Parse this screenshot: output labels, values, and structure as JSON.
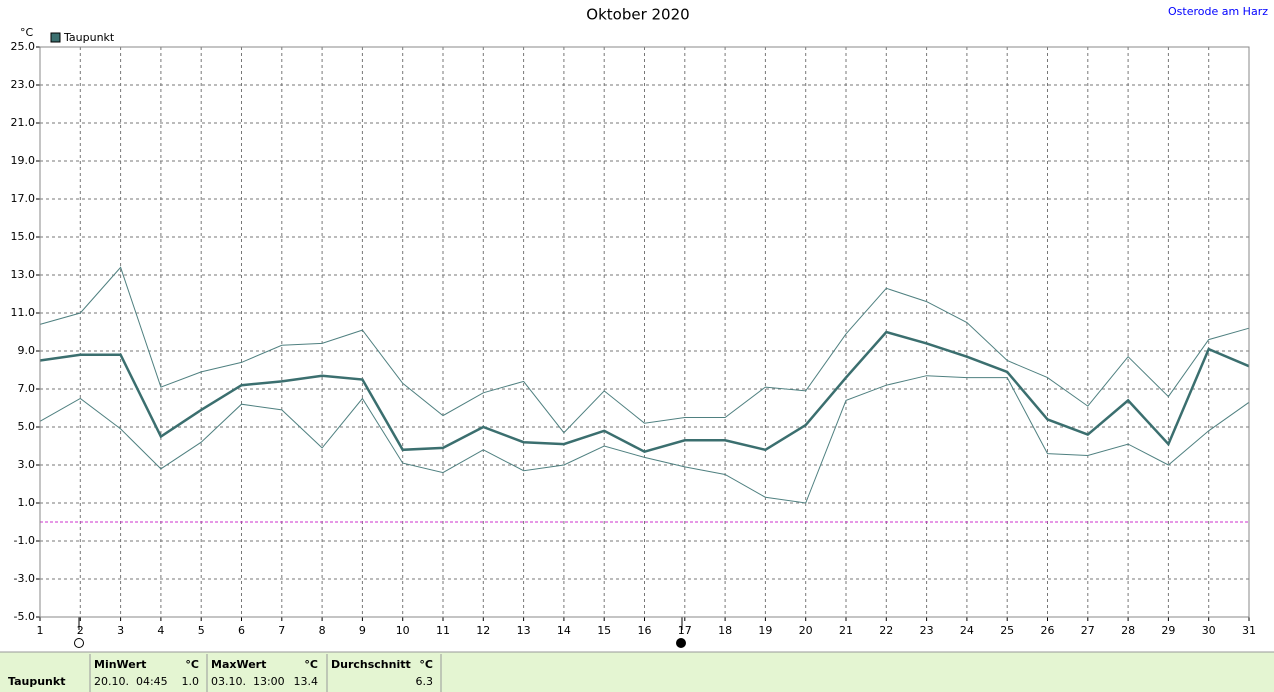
{
  "chart_data": {
    "type": "line",
    "title": "Oktober 2020",
    "location": "Osterode am Harz",
    "y_unit": "°C",
    "x": [
      1,
      2,
      3,
      4,
      5,
      6,
      7,
      8,
      9,
      10,
      11,
      12,
      13,
      14,
      15,
      16,
      17,
      18,
      19,
      20,
      21,
      22,
      23,
      24,
      25,
      26,
      27,
      28,
      29,
      30,
      31
    ],
    "xlim": [
      1,
      31
    ],
    "xticks": [
      1,
      2,
      3,
      4,
      5,
      6,
      7,
      8,
      9,
      10,
      11,
      12,
      13,
      14,
      15,
      16,
      17,
      18,
      19,
      20,
      21,
      22,
      23,
      24,
      25,
      26,
      27,
      28,
      29,
      30,
      31
    ],
    "ylim": [
      -5,
      25
    ],
    "yticks": [
      {
        "value": 25,
        "label": "25.0"
      },
      {
        "value": 23,
        "label": "23.0"
      },
      {
        "value": 21,
        "label": "21.0"
      },
      {
        "value": 19,
        "label": "19.0"
      },
      {
        "value": 17,
        "label": "17.0"
      },
      {
        "value": 15,
        "label": "15.0"
      },
      {
        "value": 13,
        "label": "13.0"
      },
      {
        "value": 11,
        "label": "11.0"
      },
      {
        "value": 9,
        "label": "9.0"
      },
      {
        "value": 7,
        "label": "7.0"
      },
      {
        "value": 5,
        "label": "5.0"
      },
      {
        "value": 3,
        "label": "3.0"
      },
      {
        "value": 1,
        "label": "1.0"
      },
      {
        "value": -1,
        "label": "-1.0"
      },
      {
        "value": -3,
        "label": "-3.0"
      },
      {
        "value": -5,
        "label": "-5.0"
      }
    ],
    "grid": true,
    "series": [
      {
        "name": "Taupunkt",
        "color": "#3b6f6f",
        "values": [
          8.5,
          8.8,
          8.8,
          4.5,
          5.9,
          7.2,
          7.4,
          7.7,
          7.5,
          3.8,
          3.9,
          5.0,
          4.2,
          4.1,
          4.8,
          3.7,
          4.3,
          4.3,
          3.8,
          5.1,
          7.6,
          10.0,
          9.4,
          8.7,
          7.9,
          5.4,
          4.6,
          6.4,
          4.1,
          9.1,
          8.2
        ]
      },
      {
        "color": "#4f8080",
        "values": [
          10.4,
          11.0,
          13.4,
          7.1,
          7.9,
          8.4,
          9.3,
          9.4,
          10.1,
          7.3,
          5.6,
          6.8,
          7.4,
          4.7,
          6.9,
          5.2,
          5.5,
          5.5,
          7.1,
          6.9,
          9.9,
          12.3,
          11.6,
          10.5,
          8.5,
          7.6,
          6.1,
          8.7,
          6.6,
          9.6,
          10.2
        ]
      },
      {
        "color": "#4f8080",
        "values": [
          5.3,
          6.5,
          4.9,
          2.8,
          4.2,
          6.2,
          5.9,
          3.9,
          6.5,
          3.1,
          2.6,
          3.8,
          2.7,
          3.0,
          4.0,
          3.4,
          2.9,
          2.5,
          1.3,
          1.0,
          6.4,
          7.2,
          7.7,
          7.6,
          7.6,
          3.6,
          3.5,
          4.1,
          3.0,
          4.8,
          6.3
        ]
      }
    ],
    "reference_line": {
      "value": 0,
      "color": "#cc33cc"
    },
    "summary": {
      "label": "Taupunkt",
      "columns": [
        {
          "header": "MinWert",
          "unit": "°C",
          "time": "20.10.  04:45",
          "value": "1.0"
        },
        {
          "header": "MaxWert",
          "unit": "°C",
          "time": "03.10.  13:00",
          "value": "13.4"
        },
        {
          "header": "Durchschnitt",
          "unit": "°C",
          "value": "6.3"
        }
      ]
    }
  }
}
